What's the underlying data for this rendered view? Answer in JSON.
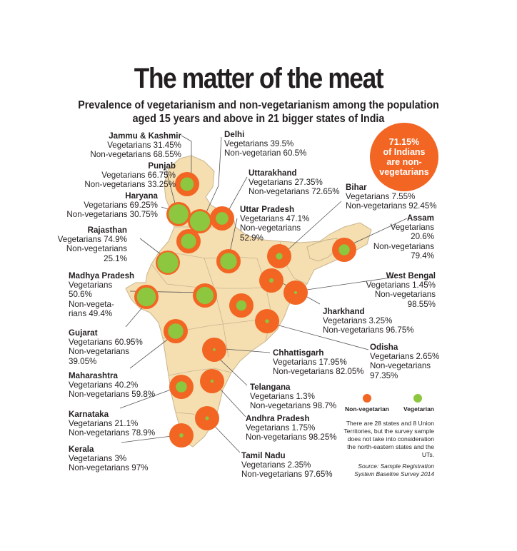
{
  "title": "The matter of the meat",
  "subtitle": "Prevalence of vegetarianism and non-vegetarianism among the population aged 15 years and above in 21 bigger states of India",
  "callout": {
    "line1": "71.15%",
    "line2": "of Indians",
    "line3": "are non-",
    "line4": "vegetarians"
  },
  "legend": {
    "nonveg_label": "Non-vegetarian",
    "veg_label": "Vegetarian"
  },
  "note": "There are 28 states and 8 Union Territories, but the survey sample does not take into consideration the north-eastern states and the UTs.",
  "source": "Source: Sample Registration System Baseline Survey 2014",
  "colors": {
    "non_vegetarian": "#f26522",
    "vegetarian": "#8dc63f",
    "map": "#f5deb0"
  },
  "chart_data": {
    "type": "map",
    "title": "The matter of the meat",
    "series_names": [
      "Vegetarians",
      "Non-vegetarians"
    ],
    "unit": "%",
    "states": [
      {
        "name": "Jammu & Kashmir",
        "vegetarian": 31.45,
        "non_vegetarian": 68.55
      },
      {
        "name": "Punjab",
        "vegetarian": 66.75,
        "non_vegetarian": 33.25
      },
      {
        "name": "Haryana",
        "vegetarian": 69.25,
        "non_vegetarian": 30.75
      },
      {
        "name": "Rajasthan",
        "vegetarian": 74.9,
        "non_vegetarian": 25.1
      },
      {
        "name": "Madhya Pradesh",
        "vegetarian": 50.6,
        "non_vegetarian": 49.4
      },
      {
        "name": "Gujarat",
        "vegetarian": 60.95,
        "non_vegetarian": 39.05
      },
      {
        "name": "Maharashtra",
        "vegetarian": 40.2,
        "non_vegetarian": 59.8
      },
      {
        "name": "Karnataka",
        "vegetarian": 21.1,
        "non_vegetarian": 78.9
      },
      {
        "name": "Kerala",
        "vegetarian": 3,
        "non_vegetarian": 97
      },
      {
        "name": "Delhi",
        "vegetarian": 39.5,
        "non_vegetarian": 60.5
      },
      {
        "name": "Uttarakhand",
        "vegetarian": 27.35,
        "non_vegetarian": 72.65
      },
      {
        "name": "Uttar Pradesh",
        "vegetarian": 47.1,
        "non_vegetarian": 52.9
      },
      {
        "name": "Bihar",
        "vegetarian": 7.55,
        "non_vegetarian": 92.45
      },
      {
        "name": "Assam",
        "vegetarian": 20.6,
        "non_vegetarian": 79.4
      },
      {
        "name": "West Bengal",
        "vegetarian": 1.45,
        "non_vegetarian": 98.55
      },
      {
        "name": "Jharkhand",
        "vegetarian": 3.25,
        "non_vegetarian": 96.75
      },
      {
        "name": "Odisha",
        "vegetarian": 2.65,
        "non_vegetarian": 97.35
      },
      {
        "name": "Chhattisgarh",
        "vegetarian": 17.95,
        "non_vegetarian": 82.05
      },
      {
        "name": "Telangana",
        "vegetarian": 1.3,
        "non_vegetarian": 98.7
      },
      {
        "name": "Andhra Pradesh",
        "vegetarian": 1.75,
        "non_vegetarian": 98.25
      },
      {
        "name": "Tamil Nadu",
        "vegetarian": 2.35,
        "non_vegetarian": 97.65
      }
    ]
  },
  "labels": [
    {
      "name": "Jammu & Kashmir",
      "lines": [
        "Vegetarians 31.45%",
        "Non-vegetarians 68.55%"
      ]
    },
    {
      "name": "Punjab",
      "lines": [
        "Vegetarians 66.75%",
        "Non-vegetarians 33.25%"
      ]
    },
    {
      "name": "Haryana",
      "lines": [
        "Vegetarians 69.25%",
        "Non-vegetarians 30.75%"
      ]
    },
    {
      "name": "Rajasthan",
      "lines": [
        "Vegetarians 74.9%",
        "Non-vegetarians",
        "25.1%"
      ]
    },
    {
      "name": "Madhya Pradesh",
      "lines": [
        "Vegetarians",
        "50.6%",
        "Non-vegeta-",
        "rians 49.4%"
      ]
    },
    {
      "name": "Gujarat",
      "lines": [
        "Vegetarians 60.95%",
        "Non-vegetarians",
        "39.05%"
      ]
    },
    {
      "name": "Maharashtra",
      "lines": [
        "Vegetarians 40.2%",
        "Non-vegetarians 59.8%"
      ]
    },
    {
      "name": "Karnataka",
      "lines": [
        "Vegetarians 21.1%",
        "Non-vegetarians 78.9%"
      ]
    },
    {
      "name": "Kerala",
      "lines": [
        "Vegetarians 3%",
        "Non-vegetarians 97%"
      ]
    },
    {
      "name": "Delhi",
      "lines": [
        "Vegetarians 39.5%",
        "Non-vegetarian 60.5%"
      ]
    },
    {
      "name": "Uttarakhand",
      "lines": [
        "Vegetarians 27.35%",
        "Non-vegetarians 72.65%"
      ]
    },
    {
      "name": "Uttar Pradesh",
      "lines": [
        "Vegetarians 47.1%",
        "Non-vegetarians",
        "52.9%"
      ]
    },
    {
      "name": "Bihar",
      "lines": [
        "Vegetarians 7.55%",
        "Non-vegetarians 92.45%"
      ]
    },
    {
      "name": "Assam",
      "lines": [
        "Vegetarians",
        "20.6%",
        "Non-vegetarians",
        "79.4%"
      ]
    },
    {
      "name": "West Bengal",
      "lines": [
        "Vegetarians 1.45%",
        "Non-vegetarians",
        "98.55%"
      ]
    },
    {
      "name": "Jharkhand",
      "lines": [
        "Vegetarians 3.25%",
        "Non-vegetarians 96.75%"
      ]
    },
    {
      "name": "Odisha",
      "lines": [
        "Vegetarians 2.65%",
        "Non-vegetarians",
        "97.35%"
      ]
    },
    {
      "name": "Chhattisgarh",
      "lines": [
        "Vegetarians 17.95%",
        "Non-vegetarians 82.05%"
      ]
    },
    {
      "name": "Telangana",
      "lines": [
        "Vegetarians 1.3%",
        "Non-vegetarians 98.7%"
      ]
    },
    {
      "name": "Andhra Pradesh",
      "lines": [
        "Vegetarians 1.75%",
        "Non-vegetarians 98.25%"
      ]
    },
    {
      "name": "Tamil Nadu",
      "lines": [
        "Vegetarians 2.35%",
        "Non-vegetarians 97.65%"
      ]
    }
  ]
}
